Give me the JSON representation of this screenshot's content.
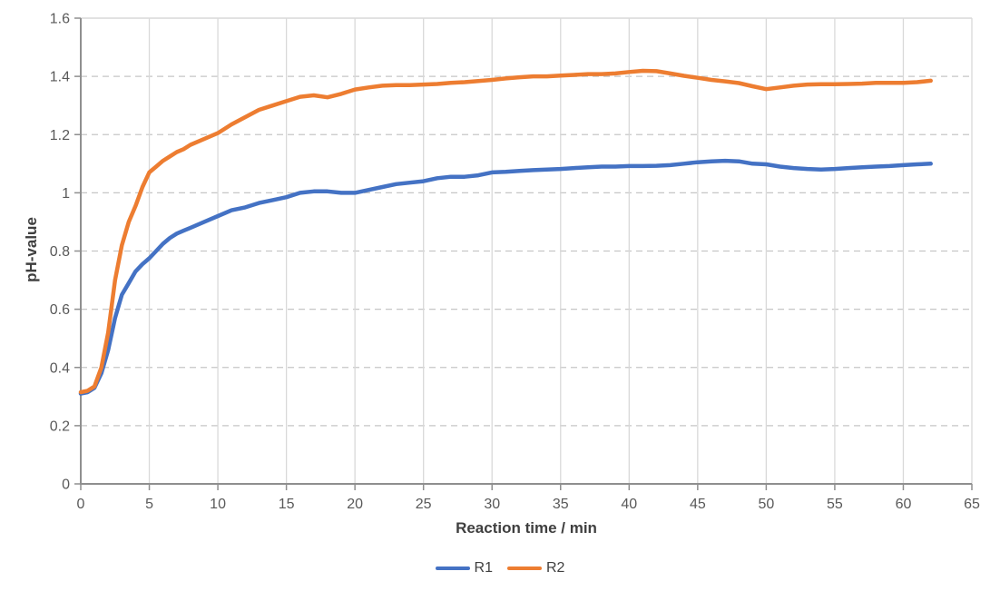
{
  "chart_data": {
    "type": "line",
    "title": "",
    "xlabel": "Reaction time / min",
    "ylabel": "pH-value",
    "xlim": [
      0,
      65
    ],
    "xstep": 5,
    "ylim": [
      0,
      1.6
    ],
    "ystep": 0.2,
    "grid": {
      "vertical": "solid",
      "horizontal": "dashed",
      "top_border": "solid"
    },
    "legend_position": "bottom-center",
    "series": [
      {
        "name": "R1",
        "color": "#4472C4",
        "points": [
          [
            0,
            0.31
          ],
          [
            0.5,
            0.315
          ],
          [
            1,
            0.33
          ],
          [
            1.5,
            0.38
          ],
          [
            2,
            0.46
          ],
          [
            2.5,
            0.57
          ],
          [
            3,
            0.65
          ],
          [
            3.5,
            0.69
          ],
          [
            4,
            0.73
          ],
          [
            4.5,
            0.755
          ],
          [
            5,
            0.775
          ],
          [
            5.5,
            0.8
          ],
          [
            6,
            0.825
          ],
          [
            6.5,
            0.845
          ],
          [
            7,
            0.86
          ],
          [
            7.5,
            0.87
          ],
          [
            8,
            0.88
          ],
          [
            9,
            0.9
          ],
          [
            10,
            0.92
          ],
          [
            11,
            0.94
          ],
          [
            12,
            0.95
          ],
          [
            13,
            0.965
          ],
          [
            14,
            0.975
          ],
          [
            15,
            0.985
          ],
          [
            16,
            1.0
          ],
          [
            17,
            1.005
          ],
          [
            18,
            1.005
          ],
          [
            19,
            1.0
          ],
          [
            20,
            1.0
          ],
          [
            21,
            1.01
          ],
          [
            22,
            1.02
          ],
          [
            23,
            1.03
          ],
          [
            24,
            1.035
          ],
          [
            25,
            1.04
          ],
          [
            26,
            1.05
          ],
          [
            27,
            1.055
          ],
          [
            28,
            1.055
          ],
          [
            29,
            1.06
          ],
          [
            30,
            1.07
          ],
          [
            31,
            1.072
          ],
          [
            32,
            1.075
          ],
          [
            33,
            1.078
          ],
          [
            34,
            1.08
          ],
          [
            35,
            1.082
          ],
          [
            36,
            1.085
          ],
          [
            37,
            1.088
          ],
          [
            38,
            1.09
          ],
          [
            39,
            1.09
          ],
          [
            40,
            1.092
          ],
          [
            41,
            1.092
          ],
          [
            42,
            1.093
          ],
          [
            43,
            1.095
          ],
          [
            44,
            1.1
          ],
          [
            45,
            1.105
          ],
          [
            46,
            1.108
          ],
          [
            47,
            1.11
          ],
          [
            48,
            1.108
          ],
          [
            49,
            1.1
          ],
          [
            50,
            1.098
          ],
          [
            51,
            1.09
          ],
          [
            52,
            1.085
          ],
          [
            53,
            1.082
          ],
          [
            54,
            1.08
          ],
          [
            55,
            1.082
          ],
          [
            56,
            1.085
          ],
          [
            57,
            1.088
          ],
          [
            58,
            1.09
          ],
          [
            59,
            1.092
          ],
          [
            60,
            1.095
          ],
          [
            61,
            1.098
          ],
          [
            62,
            1.1
          ]
        ]
      },
      {
        "name": "R2",
        "color": "#ED7D31",
        "points": [
          [
            0,
            0.315
          ],
          [
            0.5,
            0.32
          ],
          [
            1,
            0.335
          ],
          [
            1.5,
            0.4
          ],
          [
            2,
            0.52
          ],
          [
            2.5,
            0.7
          ],
          [
            3,
            0.82
          ],
          [
            3.5,
            0.9
          ],
          [
            4,
            0.955
          ],
          [
            4.5,
            1.02
          ],
          [
            5,
            1.07
          ],
          [
            5.5,
            1.09
          ],
          [
            6,
            1.11
          ],
          [
            6.5,
            1.125
          ],
          [
            7,
            1.14
          ],
          [
            7.5,
            1.15
          ],
          [
            8,
            1.165
          ],
          [
            9,
            1.185
          ],
          [
            10,
            1.205
          ],
          [
            11,
            1.235
          ],
          [
            12,
            1.26
          ],
          [
            13,
            1.285
          ],
          [
            14,
            1.3
          ],
          [
            15,
            1.315
          ],
          [
            16,
            1.33
          ],
          [
            17,
            1.335
          ],
          [
            18,
            1.328
          ],
          [
            19,
            1.34
          ],
          [
            20,
            1.355
          ],
          [
            21,
            1.362
          ],
          [
            22,
            1.368
          ],
          [
            23,
            1.37
          ],
          [
            24,
            1.37
          ],
          [
            25,
            1.372
          ],
          [
            26,
            1.374
          ],
          [
            27,
            1.378
          ],
          [
            28,
            1.38
          ],
          [
            29,
            1.384
          ],
          [
            30,
            1.388
          ],
          [
            31,
            1.393
          ],
          [
            32,
            1.397
          ],
          [
            33,
            1.4
          ],
          [
            34,
            1.4
          ],
          [
            35,
            1.403
          ],
          [
            36,
            1.405
          ],
          [
            37,
            1.408
          ],
          [
            38,
            1.408
          ],
          [
            39,
            1.41
          ],
          [
            40,
            1.415
          ],
          [
            41,
            1.419
          ],
          [
            42,
            1.418
          ],
          [
            43,
            1.41
          ],
          [
            44,
            1.402
          ],
          [
            45,
            1.395
          ],
          [
            46,
            1.388
          ],
          [
            47,
            1.383
          ],
          [
            48,
            1.377
          ],
          [
            49,
            1.366
          ],
          [
            50,
            1.356
          ],
          [
            51,
            1.362
          ],
          [
            52,
            1.368
          ],
          [
            53,
            1.372
          ],
          [
            54,
            1.373
          ],
          [
            55,
            1.373
          ],
          [
            56,
            1.374
          ],
          [
            57,
            1.375
          ],
          [
            58,
            1.378
          ],
          [
            59,
            1.378
          ],
          [
            60,
            1.378
          ],
          [
            61,
            1.38
          ],
          [
            62,
            1.385
          ]
        ]
      }
    ]
  },
  "colors": {
    "background": "#ffffff",
    "axis": "#8f8f8f",
    "grid_solid": "#d9d9d9",
    "grid_dashed": "#c6c6c6",
    "tick_label": "#595959",
    "axis_title": "#3f3f3f",
    "legend_label": "#404040"
  }
}
